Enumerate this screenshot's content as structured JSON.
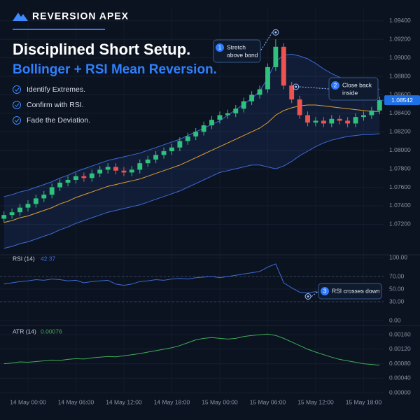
{
  "header": {
    "brand": "REVERSION APEX",
    "title": "Disciplined Short Setup.",
    "subtitle": "Bollinger + RSI Mean Reversion.",
    "checklist": [
      "Identify Extremes.",
      "Confirm with RSI.",
      "Fade the Deviation."
    ]
  },
  "chart_data": [
    {
      "type": "candlestick",
      "x": [
        -3,
        -2,
        -1,
        0,
        1,
        2,
        3,
        4,
        5,
        6,
        7,
        8,
        9,
        10,
        11,
        12,
        13,
        14,
        15,
        16,
        17,
        18,
        19,
        20,
        21,
        22,
        23,
        24,
        25,
        26,
        27,
        28,
        29,
        30,
        31,
        32,
        33,
        34,
        35,
        36,
        37,
        38,
        39,
        40,
        41,
        42,
        43,
        44
      ],
      "open": [
        1.0726,
        1.073,
        1.0733,
        1.0738,
        1.0742,
        1.0748,
        1.0752,
        1.076,
        1.0765,
        1.0768,
        1.0772,
        1.077,
        1.0775,
        1.0779,
        1.0782,
        1.0778,
        1.0776,
        1.0779,
        1.0786,
        1.079,
        1.0795,
        1.0799,
        1.0803,
        1.081,
        1.0815,
        1.082,
        1.0827,
        1.0833,
        1.0838,
        1.084,
        1.0845,
        1.0853,
        1.086,
        1.0866,
        1.089,
        1.0912,
        1.087,
        1.0855,
        1.0838,
        1.083,
        1.0832,
        1.0829,
        1.0834,
        1.0832,
        1.0829,
        1.0836,
        1.0838,
        1.0843
      ],
      "high": [
        1.0734,
        1.0737,
        1.0742,
        1.0746,
        1.0752,
        1.0756,
        1.0764,
        1.0769,
        1.0772,
        1.0776,
        1.0776,
        1.0779,
        1.0783,
        1.0786,
        1.0786,
        1.0782,
        1.0783,
        1.079,
        1.0794,
        1.0799,
        1.0803,
        1.0807,
        1.0814,
        1.0819,
        1.0824,
        1.0831,
        1.0837,
        1.0842,
        1.0844,
        1.0849,
        1.0857,
        1.0864,
        1.087,
        1.0894,
        1.092,
        1.0916,
        1.0874,
        1.0859,
        1.0842,
        1.0836,
        1.0836,
        1.0838,
        1.0838,
        1.0836,
        1.084,
        1.0842,
        1.0847,
        1.0858
      ],
      "low": [
        1.0722,
        1.0726,
        1.0729,
        1.0734,
        1.0738,
        1.0744,
        1.0748,
        1.0756,
        1.0761,
        1.0764,
        1.0766,
        1.0766,
        1.0771,
        1.0775,
        1.0774,
        1.0772,
        1.0772,
        1.0775,
        1.0782,
        1.0786,
        1.0791,
        1.0795,
        1.0799,
        1.0806,
        1.0811,
        1.0816,
        1.0823,
        1.0829,
        1.0834,
        1.0836,
        1.0841,
        1.0849,
        1.0856,
        1.0862,
        1.0886,
        1.0866,
        1.0851,
        1.0834,
        1.0826,
        1.0826,
        1.0825,
        1.0825,
        1.0828,
        1.0825,
        1.0825,
        1.0832,
        1.0834,
        1.0839
      ],
      "close": [
        1.073,
        1.0733,
        1.0738,
        1.0742,
        1.0748,
        1.0752,
        1.076,
        1.0765,
        1.0768,
        1.0772,
        1.077,
        1.0775,
        1.0779,
        1.0782,
        1.0778,
        1.0776,
        1.0779,
        1.0786,
        1.079,
        1.0795,
        1.0799,
        1.0803,
        1.081,
        1.0815,
        1.082,
        1.0827,
        1.0833,
        1.0838,
        1.084,
        1.0845,
        1.0853,
        1.086,
        1.0866,
        1.089,
        1.0912,
        1.087,
        1.0855,
        1.0838,
        1.083,
        1.0832,
        1.0829,
        1.0834,
        1.0832,
        1.0829,
        1.0836,
        1.0838,
        1.0843,
        1.08542
      ],
      "up_color": "#2ec27e",
      "down_color": "#ef5350",
      "bands": {
        "upper": [
          1.075,
          1.0752,
          1.0755,
          1.0757,
          1.076,
          1.0763,
          1.0766,
          1.077,
          1.0773,
          1.0777,
          1.078,
          1.0783,
          1.0786,
          1.0789,
          1.0791,
          1.0793,
          1.0795,
          1.0797,
          1.08,
          1.0803,
          1.0806,
          1.0809,
          1.0812,
          1.0816,
          1.082,
          1.0824,
          1.0828,
          1.0832,
          1.0838,
          1.0844,
          1.085,
          1.0856,
          1.0864,
          1.0878,
          1.0896,
          1.0903,
          1.0904,
          1.0902,
          1.0899,
          1.0894,
          1.0888,
          1.0883,
          1.0879,
          1.0875,
          1.0872,
          1.0869,
          1.0867,
          1.0866
        ],
        "middle": [
          1.0722,
          1.0724,
          1.0727,
          1.0729,
          1.0732,
          1.0735,
          1.0738,
          1.0742,
          1.0745,
          1.0749,
          1.0752,
          1.0755,
          1.0758,
          1.0761,
          1.0763,
          1.0765,
          1.0767,
          1.0769,
          1.0772,
          1.0775,
          1.0778,
          1.0781,
          1.0784,
          1.0788,
          1.0792,
          1.0796,
          1.08,
          1.0804,
          1.0808,
          1.0812,
          1.0816,
          1.082,
          1.0824,
          1.083,
          1.0838,
          1.0843,
          1.0846,
          1.0848,
          1.0849,
          1.0849,
          1.0848,
          1.0847,
          1.0846,
          1.0845,
          1.0844,
          1.0843,
          1.0842,
          1.0842
        ],
        "lower": [
          1.0694,
          1.0696,
          1.0699,
          1.0701,
          1.0704,
          1.0707,
          1.071,
          1.0714,
          1.0717,
          1.0721,
          1.0724,
          1.0727,
          1.073,
          1.0733,
          1.0735,
          1.0737,
          1.0739,
          1.0741,
          1.0744,
          1.0747,
          1.075,
          1.0753,
          1.0756,
          1.076,
          1.0764,
          1.0768,
          1.0772,
          1.0776,
          1.0778,
          1.078,
          1.0782,
          1.0784,
          1.0784,
          1.0782,
          1.078,
          1.0783,
          1.0788,
          1.0794,
          1.0799,
          1.0804,
          1.0808,
          1.0811,
          1.0813,
          1.0815,
          1.0816,
          1.0817,
          1.0817,
          1.0818
        ],
        "band_color": "#3d6bd6",
        "middle_color": "#e0a030"
      },
      "xlim": [
        -3.5,
        44.5
      ],
      "ylim": [
        1.069,
        1.0955
      ],
      "yticks": [
        {
          "value": 1.094,
          "label": "1.09400"
        },
        {
          "value": 1.092,
          "label": "1.09200"
        },
        {
          "value": 1.09,
          "label": "1.09000"
        },
        {
          "value": 1.088,
          "label": "1.08800"
        },
        {
          "value": 1.086,
          "label": "1.08600"
        },
        {
          "value": 1.084,
          "label": "1.08400"
        },
        {
          "value": 1.082,
          "label": "1.08200"
        },
        {
          "value": 1.08,
          "label": "1.08000"
        },
        {
          "value": 1.078,
          "label": "1.07800"
        },
        {
          "value": 1.076,
          "label": "1.07600"
        },
        {
          "value": 1.074,
          "label": "1.07400"
        },
        {
          "value": 1.072,
          "label": "1.07200"
        }
      ],
      "annotations": [
        {
          "number": 1,
          "lines": [
            "Stretch",
            "above band"
          ]
        },
        {
          "number": 2,
          "lines": [
            "Close back",
            "inside"
          ]
        }
      ]
    },
    {
      "type": "line",
      "label": "RSI (14)",
      "color": "#3d6bd6",
      "x": [
        -3,
        -2,
        -1,
        0,
        1,
        2,
        3,
        4,
        5,
        6,
        7,
        8,
        9,
        10,
        11,
        12,
        13,
        14,
        15,
        16,
        17,
        18,
        19,
        20,
        21,
        22,
        23,
        24,
        25,
        26,
        27,
        28,
        29,
        30,
        31,
        32,
        33,
        34,
        35,
        36,
        37,
        38,
        39,
        40,
        41,
        42,
        43,
        44
      ],
      "values": [
        58,
        60,
        62,
        63,
        65,
        64,
        66,
        65,
        63,
        64,
        60,
        62,
        63,
        64,
        58,
        56,
        58,
        62,
        63,
        65,
        64,
        66,
        67,
        66,
        68,
        69,
        70,
        68,
        70,
        72,
        74,
        76,
        78,
        85,
        90,
        60,
        52,
        45,
        44,
        46,
        43,
        48,
        45,
        43,
        46,
        47,
        44,
        42.37
      ],
      "levels": [
        70,
        30
      ],
      "xlim": [
        -3.5,
        44.5
      ],
      "ylim": [
        0,
        100
      ],
      "yticks": [
        {
          "value": 100,
          "label": "100.00"
        },
        {
          "value": 70,
          "label": "70.00"
        },
        {
          "value": 50,
          "label": "50.00"
        },
        {
          "value": 30,
          "label": "30.00"
        },
        {
          "value": 0,
          "label": "0.00"
        }
      ],
      "annotations": [
        {
          "number": 3,
          "lines": [
            "RSI crosses down"
          ]
        }
      ]
    },
    {
      "type": "line",
      "label": "ATR (14)",
      "color": "#3fae5a",
      "x": [
        -3,
        -2,
        -1,
        0,
        1,
        2,
        3,
        4,
        5,
        6,
        7,
        8,
        9,
        10,
        11,
        12,
        13,
        14,
        15,
        16,
        17,
        18,
        19,
        20,
        21,
        22,
        23,
        24,
        25,
        26,
        27,
        28,
        29,
        30,
        31,
        32,
        33,
        34,
        35,
        36,
        37,
        38,
        39,
        40,
        41,
        42,
        43,
        44
      ],
      "values": [
        0.0008,
        0.00082,
        0.00085,
        0.00084,
        0.00086,
        0.00088,
        0.0009,
        0.00089,
        0.00092,
        0.00094,
        0.00093,
        0.00096,
        0.00098,
        0.001,
        0.00099,
        0.00102,
        0.00105,
        0.00108,
        0.00112,
        0.00116,
        0.0012,
        0.00124,
        0.0013,
        0.00138,
        0.00146,
        0.0015,
        0.00152,
        0.0015,
        0.00148,
        0.0015,
        0.00155,
        0.00158,
        0.0016,
        0.00162,
        0.00158,
        0.0015,
        0.0014,
        0.0013,
        0.0012,
        0.00112,
        0.00105,
        0.00098,
        0.00092,
        0.00088,
        0.00084,
        0.0008,
        0.00078,
        0.00076
      ],
      "xlim": [
        -3.5,
        44.5
      ],
      "ylim": [
        0,
        0.00172
      ],
      "yticks": [
        {
          "value": 0.0016,
          "label": "0.00160"
        },
        {
          "value": 0.0012,
          "label": "0.00120"
        },
        {
          "value": 0.0008,
          "label": "0.00080"
        },
        {
          "value": 0.0004,
          "label": "0.00040"
        },
        {
          "value": 0,
          "label": "0.00000"
        }
      ],
      "xticks": [
        {
          "value": 0,
          "label": "14 May 00:00"
        },
        {
          "value": 6,
          "label": "14 May 06:00"
        },
        {
          "value": 12,
          "label": "14 May 12:00"
        },
        {
          "value": 18,
          "label": "14 May 18:00"
        },
        {
          "value": 24,
          "label": "15 May 00:00"
        },
        {
          "value": 30,
          "label": "15 May 06:00"
        },
        {
          "value": 36,
          "label": "15 May 12:00"
        },
        {
          "value": 42,
          "label": "15 May 18:00"
        }
      ]
    }
  ]
}
